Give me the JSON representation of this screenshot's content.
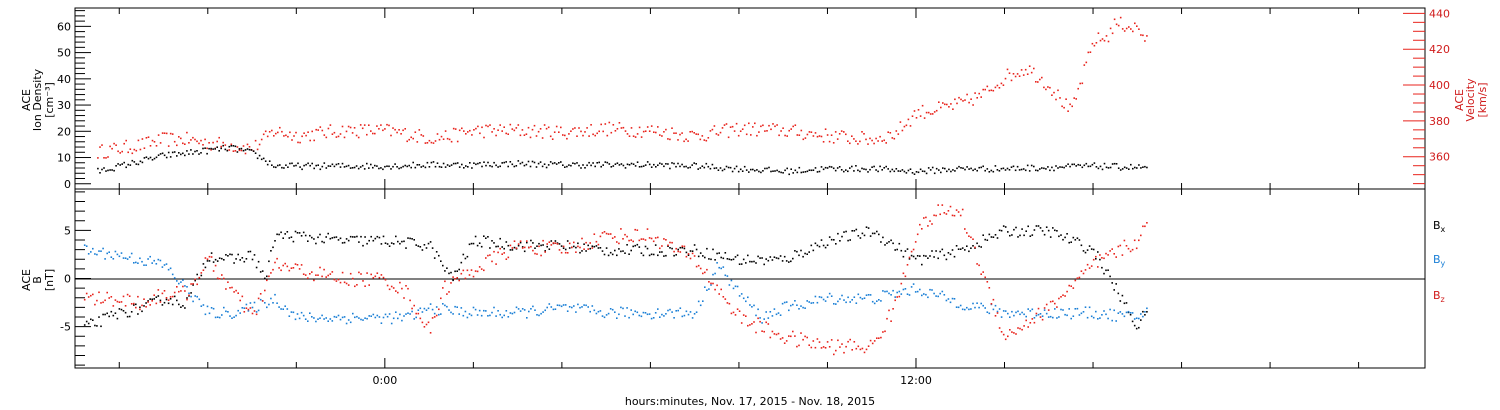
{
  "chart_data": [
    {
      "type": "scatter",
      "panel": "top",
      "ylabel_lines": [
        "ACE",
        "Ion Density",
        "[cm⁻³]"
      ],
      "y2label_lines": [
        "ACE",
        "Velocity",
        "[km/s]"
      ],
      "ylim": [
        -2,
        67
      ],
      "y2lim": [
        342,
        443
      ],
      "yticks": [
        0,
        10,
        20,
        30,
        40,
        50,
        60
      ],
      "y2ticks": [
        360,
        380,
        400,
        420,
        440
      ],
      "colors": {
        "density": "#000000",
        "velocity": "#e8231c"
      },
      "series": [
        {
          "name": "Ion Density",
          "axis": "left",
          "x": [
            -6.5,
            -6,
            -5.5,
            -5,
            -4.5,
            -4,
            -3.5,
            -3,
            -2.5,
            -2,
            -1,
            0,
            1,
            2,
            3,
            4,
            5,
            6,
            7,
            8,
            9,
            10,
            11,
            12,
            13,
            14,
            15,
            16,
            17,
            17.2
          ],
          "values": [
            5,
            7,
            9,
            11,
            12,
            13,
            14,
            12,
            7,
            7,
            7,
            7,
            7.5,
            7.5,
            8,
            7.5,
            7.5,
            7.5,
            7,
            6,
            5,
            6,
            6,
            5,
            6,
            6,
            6.5,
            7,
            6.5,
            6.5
          ]
        },
        {
          "name": "Velocity",
          "axis": "right",
          "x": [
            -6.5,
            -6,
            -5.5,
            -5,
            -4.5,
            -4,
            -3.5,
            -3,
            -2.5,
            -2,
            -1,
            0,
            1,
            1.5,
            2,
            3,
            4,
            5,
            6,
            7,
            8,
            9,
            10,
            11,
            11.5,
            12,
            12.5,
            13,
            13.5,
            14,
            14.5,
            15,
            15.5,
            16,
            16.3,
            16.5,
            17,
            17.2
          ],
          "values": [
            363,
            365,
            367,
            370,
            370,
            368,
            367,
            365,
            375,
            372,
            375,
            375,
            371,
            372,
            375,
            375,
            374,
            376,
            375,
            372,
            376,
            375,
            372,
            370,
            373,
            385,
            387,
            390,
            395,
            405,
            410,
            400,
            385,
            425,
            427,
            435,
            432,
            425
          ]
        }
      ]
    },
    {
      "type": "scatter",
      "panel": "bottom",
      "ylabel_lines": [
        "ACE",
        "B",
        "[nT]"
      ],
      "ylim": [
        -9.3,
        9.3
      ],
      "yticks": [
        -5,
        0,
        5
      ],
      "xlabel": "hours:minutes, Nov. 17, 2015 - Nov. 18, 2015",
      "xlim": [
        -7,
        23.5
      ],
      "xticks": [
        "0:00",
        "12:00"
      ],
      "xtick_values": [
        0,
        12
      ],
      "legend": [
        "Bx",
        "By",
        "Bz"
      ],
      "legend_placement": "right",
      "colors": {
        "Bx": "#000000",
        "By": "#1a7fd6",
        "Bz": "#e8231c"
      },
      "series": [
        {
          "name": "Bx",
          "x": [
            -6.8,
            -6,
            -5.5,
            -5,
            -4.5,
            -4,
            -3.5,
            -3,
            -2.7,
            -2.5,
            -2,
            -1,
            0,
            1,
            1.5,
            2,
            3,
            4,
            5,
            6,
            7,
            8,
            9,
            10,
            11,
            12,
            13,
            14,
            15,
            16,
            17,
            17.2
          ],
          "values": [
            -5,
            -3.5,
            -3,
            -2,
            -2.5,
            2.5,
            2,
            2.5,
            0,
            4.5,
            4.5,
            4,
            4,
            3.5,
            0,
            4,
            3.5,
            3.5,
            3,
            3,
            3,
            2,
            2,
            4,
            5,
            2,
            3,
            5,
            5,
            3,
            -5,
            -3
          ]
        },
        {
          "name": "By",
          "x": [
            -6.8,
            -6,
            -5.5,
            -5,
            -4.5,
            -4,
            -3.5,
            -3,
            -2.5,
            -2,
            -1,
            0,
            0.5,
            1,
            2,
            3,
            4,
            5,
            6,
            7,
            7.5,
            8,
            8.5,
            9,
            10,
            11,
            12,
            13,
            14,
            15,
            16,
            17,
            17.2
          ],
          "values": [
            3,
            2.5,
            2,
            1.5,
            -1,
            -3.5,
            -3.5,
            -3,
            -2,
            -4,
            -4,
            -4,
            -4,
            -3,
            -3.5,
            -3.5,
            -3,
            -3.5,
            -3.5,
            -3.5,
            1.5,
            -1.5,
            -4,
            -3,
            -2,
            -2,
            -1,
            -2.5,
            -3.5,
            -3.5,
            -3.5,
            -4,
            -3
          ]
        },
        {
          "name": "Bz",
          "x": [
            -6.8,
            -6,
            -5.5,
            -5,
            -4.5,
            -4,
            -3.5,
            -3,
            -2.5,
            -2,
            -1.5,
            -1,
            0,
            0.5,
            1,
            1.3,
            2,
            3,
            4,
            5,
            6,
            7,
            8,
            9,
            10,
            11,
            11.5,
            12,
            12.5,
            13,
            14,
            15,
            16,
            17,
            17.2
          ],
          "values": [
            -2,
            -2,
            -2.5,
            -1.5,
            -1.5,
            2,
            -1,
            -4,
            1.5,
            1,
            0.5,
            0,
            0,
            -1.5,
            -5.5,
            -1,
            1,
            3.5,
            3,
            4.5,
            4.5,
            2,
            -4,
            -6,
            -7,
            -7,
            -3,
            5,
            7,
            7,
            -6,
            -3,
            1.5,
            4,
            5.5
          ]
        }
      ]
    }
  ]
}
